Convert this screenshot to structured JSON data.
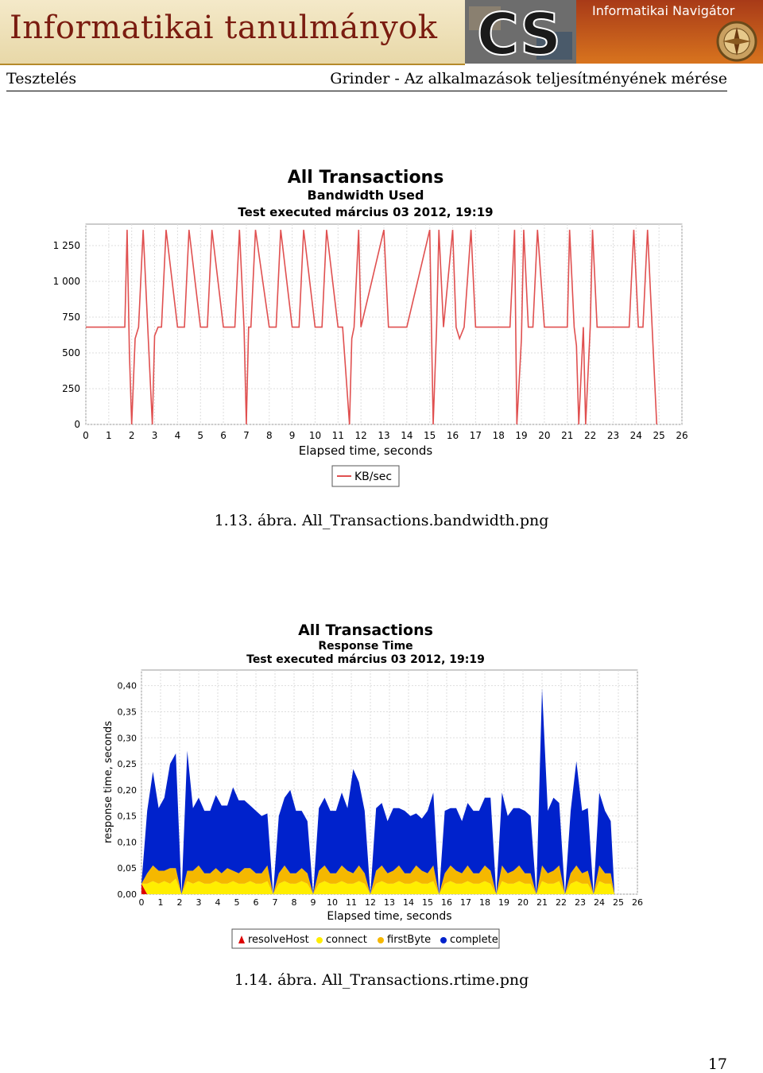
{
  "banner": {
    "title": "Informatikai tanulmányok",
    "logo_text": "CS",
    "nav_title": "Informatikai Navigátor"
  },
  "running_head": {
    "left": "Tesztelés",
    "right": "Grinder - Az alkalmazások teljesítményének mérése"
  },
  "figure1": {
    "caption": "1.13. ábra.  All_Transactions.bandwidth.png"
  },
  "figure2": {
    "caption": "1.14. ábra.  All_Transactions.rtime.png"
  },
  "page_number": "17",
  "chart_data": [
    {
      "type": "line",
      "title": "All Transactions",
      "subtitle": "Bandwidth Used",
      "subtitle2": "Test executed március 03 2012, 19:19",
      "xlabel": "Elapsed time, seconds",
      "ylabel": "",
      "xlim": [
        0,
        26
      ],
      "ylim": [
        0,
        1400
      ],
      "xticks": [
        "0",
        "1",
        "2",
        "3",
        "4",
        "5",
        "6",
        "7",
        "8",
        "9",
        "10",
        "11",
        "12",
        "13",
        "14",
        "15",
        "16",
        "17",
        "18",
        "19",
        "20",
        "21",
        "22",
        "23",
        "24",
        "25",
        "26"
      ],
      "yticks": [
        "0",
        "250",
        "500",
        "750",
        "1 000",
        "1 250"
      ],
      "grid": true,
      "legend_position": "bottom",
      "series": [
        {
          "name": "KB/sec",
          "color": "#e05050",
          "x": [
            0,
            1.5,
            1.7,
            1.8,
            1.9,
            2.0,
            2.15,
            2.3,
            2.5,
            2.7,
            2.9,
            3.0,
            3.15,
            3.3,
            3.5,
            4.0,
            4.15,
            4.3,
            4.5,
            5.0,
            5.15,
            5.3,
            5.5,
            6.0,
            6.5,
            6.7,
            6.9,
            7.0,
            7.1,
            7.2,
            7.4,
            8.0,
            8.15,
            8.3,
            8.5,
            9.0,
            9.15,
            9.3,
            9.5,
            10.0,
            10.15,
            10.3,
            10.5,
            11.0,
            11.2,
            11.5,
            11.6,
            11.7,
            11.9,
            12.0,
            13.0,
            13.2,
            13.4,
            14.0,
            15.0,
            15.15,
            15.3,
            15.4,
            15.6,
            16.0,
            16.15,
            16.3,
            16.5,
            16.8,
            17.0,
            18.5,
            18.7,
            18.8,
            19.0,
            19.1,
            19.3,
            19.5,
            19.7,
            20.0,
            21.0,
            21.1,
            21.3,
            21.4,
            21.5,
            21.7,
            21.8,
            22.0,
            22.1,
            22.3,
            23.5,
            23.7,
            23.9,
            24.1,
            24.3,
            24.5,
            24.7,
            24.9
          ],
          "values": [
            680,
            680,
            680,
            1360,
            500,
            0,
            600,
            680,
            1360,
            680,
            0,
            620,
            680,
            680,
            1360,
            680,
            680,
            680,
            1360,
            680,
            680,
            680,
            1360,
            680,
            680,
            1360,
            680,
            0,
            680,
            680,
            1360,
            680,
            680,
            680,
            1360,
            680,
            680,
            680,
            1360,
            680,
            680,
            680,
            1360,
            680,
            680,
            0,
            600,
            680,
            1360,
            680,
            1360,
            680,
            680,
            680,
            1360,
            0,
            680,
            1360,
            680,
            1360,
            680,
            600,
            680,
            1360,
            680,
            680,
            1360,
            0,
            600,
            1360,
            680,
            680,
            1360,
            680,
            680,
            1360,
            680,
            550,
            0,
            680,
            0,
            680,
            1360,
            680,
            680,
            680,
            1360,
            680,
            680,
            1360,
            680,
            0
          ]
        }
      ]
    },
    {
      "type": "area",
      "title": "All Transactions",
      "subtitle": "Response Time",
      "subtitle2": "Test executed március 03 2012, 19:19",
      "xlabel": "Elapsed time, seconds",
      "ylabel": "response time, seconds",
      "xlim": [
        0,
        26
      ],
      "ylim": [
        0,
        0.43
      ],
      "xticks": [
        "0",
        "1",
        "2",
        "3",
        "4",
        "5",
        "6",
        "7",
        "8",
        "9",
        "10",
        "11",
        "12",
        "13",
        "14",
        "15",
        "16",
        "17",
        "18",
        "19",
        "20",
        "21",
        "22",
        "23",
        "24",
        "25",
        "26"
      ],
      "yticks": [
        "0,00",
        "0,05",
        "0,10",
        "0,15",
        "0,20",
        "0,25",
        "0,30",
        "0,35",
        "0,40"
      ],
      "grid": true,
      "legend_position": "bottom",
      "x": [
        0,
        0.3,
        0.6,
        0.9,
        1.2,
        1.5,
        1.8,
        2.1,
        2.4,
        2.7,
        3.0,
        3.3,
        3.6,
        3.9,
        4.2,
        4.5,
        4.8,
        5.1,
        5.4,
        5.7,
        6.0,
        6.3,
        6.6,
        6.9,
        7.2,
        7.5,
        7.8,
        8.1,
        8.4,
        8.7,
        9.0,
        9.3,
        9.6,
        9.9,
        10.2,
        10.5,
        10.8,
        11.1,
        11.4,
        11.7,
        12.0,
        12.3,
        12.6,
        12.9,
        13.2,
        13.5,
        13.8,
        14.1,
        14.4,
        14.7,
        15.0,
        15.3,
        15.6,
        15.9,
        16.2,
        16.5,
        16.8,
        17.1,
        17.4,
        17.7,
        18.0,
        18.3,
        18.6,
        18.9,
        19.2,
        19.5,
        19.8,
        20.1,
        20.4,
        20.7,
        21.0,
        21.3,
        21.6,
        21.9,
        22.2,
        22.5,
        22.8,
        23.1,
        23.4,
        23.7,
        24.0,
        24.3,
        24.6,
        24.8
      ],
      "series": [
        {
          "name": "resolveHost",
          "color": "#dd0000",
          "values": [
            0.02,
            0.0,
            0.0,
            0.0,
            0.0,
            0.0,
            0.0,
            0.0,
            0.0,
            0.0,
            0.0,
            0.0,
            0.0,
            0.0,
            0.0,
            0.0,
            0.0,
            0.0,
            0.0,
            0.0,
            0.0,
            0.0,
            0.0,
            0.0,
            0.0,
            0.0,
            0.0,
            0.0,
            0.0,
            0.0,
            0.0,
            0.0,
            0.0,
            0.0,
            0.0,
            0.0,
            0.0,
            0.0,
            0.0,
            0.0,
            0.0,
            0.0,
            0.0,
            0.0,
            0.0,
            0.0,
            0.0,
            0.0,
            0.0,
            0.0,
            0.0,
            0.0,
            0.0,
            0.0,
            0.0,
            0.0,
            0.0,
            0.0,
            0.0,
            0.0,
            0.0,
            0.0,
            0.0,
            0.0,
            0.0,
            0.0,
            0.0,
            0.0,
            0.0,
            0.0,
            0.0,
            0.0,
            0.0,
            0.0,
            0.0,
            0.0,
            0.0,
            0.0,
            0.0,
            0.0,
            0.0,
            0.0,
            0.0,
            0.0
          ]
        },
        {
          "name": "connect",
          "color": "#ffee00",
          "values": [
            0.0,
            0.02,
            0.025,
            0.02,
            0.025,
            0.02,
            0.03,
            0.0,
            0.025,
            0.02,
            0.025,
            0.02,
            0.02,
            0.025,
            0.02,
            0.02,
            0.025,
            0.02,
            0.02,
            0.025,
            0.02,
            0.02,
            0.025,
            0.0,
            0.02,
            0.025,
            0.02,
            0.02,
            0.025,
            0.02,
            0.0,
            0.02,
            0.025,
            0.02,
            0.02,
            0.025,
            0.02,
            0.02,
            0.025,
            0.02,
            0.0,
            0.02,
            0.025,
            0.02,
            0.02,
            0.025,
            0.02,
            0.02,
            0.025,
            0.02,
            0.02,
            0.025,
            0.0,
            0.02,
            0.025,
            0.02,
            0.02,
            0.025,
            0.02,
            0.02,
            0.025,
            0.02,
            0.0,
            0.025,
            0.02,
            0.02,
            0.025,
            0.02,
            0.02,
            0.0,
            0.025,
            0.02,
            0.02,
            0.025,
            0.0,
            0.02,
            0.025,
            0.02,
            0.02,
            0.0,
            0.025,
            0.02,
            0.02,
            0.0
          ]
        },
        {
          "name": "firstByte",
          "color": "#f5b800",
          "values": [
            0.0,
            0.02,
            0.03,
            0.025,
            0.02,
            0.03,
            0.02,
            0.0,
            0.02,
            0.025,
            0.03,
            0.02,
            0.02,
            0.025,
            0.02,
            0.03,
            0.02,
            0.02,
            0.03,
            0.025,
            0.02,
            0.02,
            0.03,
            0.0,
            0.02,
            0.03,
            0.02,
            0.02,
            0.025,
            0.02,
            0.0,
            0.025,
            0.03,
            0.02,
            0.02,
            0.03,
            0.025,
            0.02,
            0.03,
            0.02,
            0.0,
            0.025,
            0.03,
            0.02,
            0.025,
            0.03,
            0.02,
            0.02,
            0.03,
            0.025,
            0.02,
            0.03,
            0.0,
            0.02,
            0.03,
            0.025,
            0.02,
            0.03,
            0.02,
            0.02,
            0.03,
            0.025,
            0.0,
            0.03,
            0.02,
            0.025,
            0.03,
            0.02,
            0.02,
            0.0,
            0.03,
            0.02,
            0.025,
            0.03,
            0.0,
            0.02,
            0.03,
            0.02,
            0.025,
            0.0,
            0.03,
            0.02,
            0.02,
            0.0
          ]
        },
        {
          "name": "complete",
          "color": "#0022cc",
          "values": [
            0.0,
            0.12,
            0.18,
            0.12,
            0.14,
            0.2,
            0.22,
            0.0,
            0.23,
            0.12,
            0.13,
            0.12,
            0.12,
            0.14,
            0.13,
            0.12,
            0.16,
            0.14,
            0.13,
            0.12,
            0.12,
            0.11,
            0.1,
            0.0,
            0.11,
            0.13,
            0.16,
            0.12,
            0.11,
            0.1,
            0.0,
            0.12,
            0.13,
            0.12,
            0.12,
            0.14,
            0.12,
            0.2,
            0.16,
            0.12,
            0.0,
            0.12,
            0.12,
            0.1,
            0.12,
            0.11,
            0.12,
            0.11,
            0.1,
            0.1,
            0.12,
            0.14,
            0.0,
            0.12,
            0.11,
            0.12,
            0.1,
            0.12,
            0.12,
            0.12,
            0.13,
            0.14,
            0.0,
            0.14,
            0.11,
            0.12,
            0.11,
            0.12,
            0.11,
            0.0,
            0.34,
            0.12,
            0.14,
            0.12,
            0.0,
            0.12,
            0.2,
            0.12,
            0.12,
            0.0,
            0.14,
            0.12,
            0.1,
            0.0
          ]
        }
      ]
    }
  ]
}
